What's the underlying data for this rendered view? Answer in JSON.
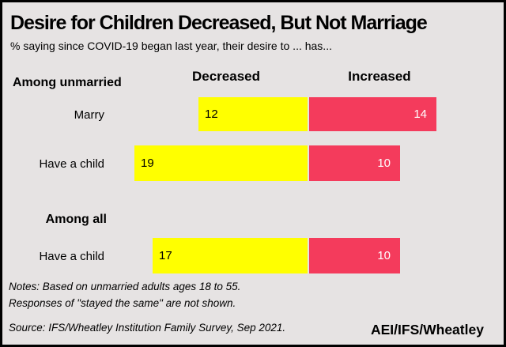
{
  "page": {
    "title": "Desire for Children Decreased, But Not Marriage",
    "subtitle": "% saying since COVID-19 began last year, their desire to ... has...",
    "notes_line1": "Notes: Based on unmarried adults ages 18 to 55.",
    "notes_line2": "Responses of  \"stayed the same\" are not shown.",
    "source": "Source: IFS/Wheatley Institution Family Survey, Sep 2021.",
    "brand": "AEI/IFS/Wheatley"
  },
  "chart_data": {
    "type": "bar",
    "subtype": "diverging-horizontal",
    "title": "Desire for Children Decreased, But Not Marriage",
    "subtitle": "% saying since COVID-19 began last year, their desire to ... has...",
    "unit": "%",
    "column_headers": [
      "Decreased",
      "Increased"
    ],
    "series": [
      {
        "name": "Decreased",
        "color": "#FFFF00",
        "value_label_color": "#000000"
      },
      {
        "name": "Increased",
        "color": "#F43B5C",
        "value_label_color": "#FFFFFF"
      }
    ],
    "groups": [
      {
        "label": "Among unmarried",
        "rows": [
          {
            "category": "Marry",
            "decreased": 12,
            "increased": 14
          },
          {
            "category": "Have a child",
            "decreased": 19,
            "increased": 10
          }
        ]
      },
      {
        "label": "Among all",
        "rows": [
          {
            "category": "Have a child",
            "decreased": 17,
            "increased": 10
          }
        ]
      }
    ],
    "legend_position": "column-headers-above-bars",
    "grid": false
  },
  "colors": {
    "background": "#E6E3E3",
    "frame_border": "#000000",
    "decreased_bar": "#FFFF00",
    "increased_bar": "#F43B5C",
    "text": "#000000"
  }
}
